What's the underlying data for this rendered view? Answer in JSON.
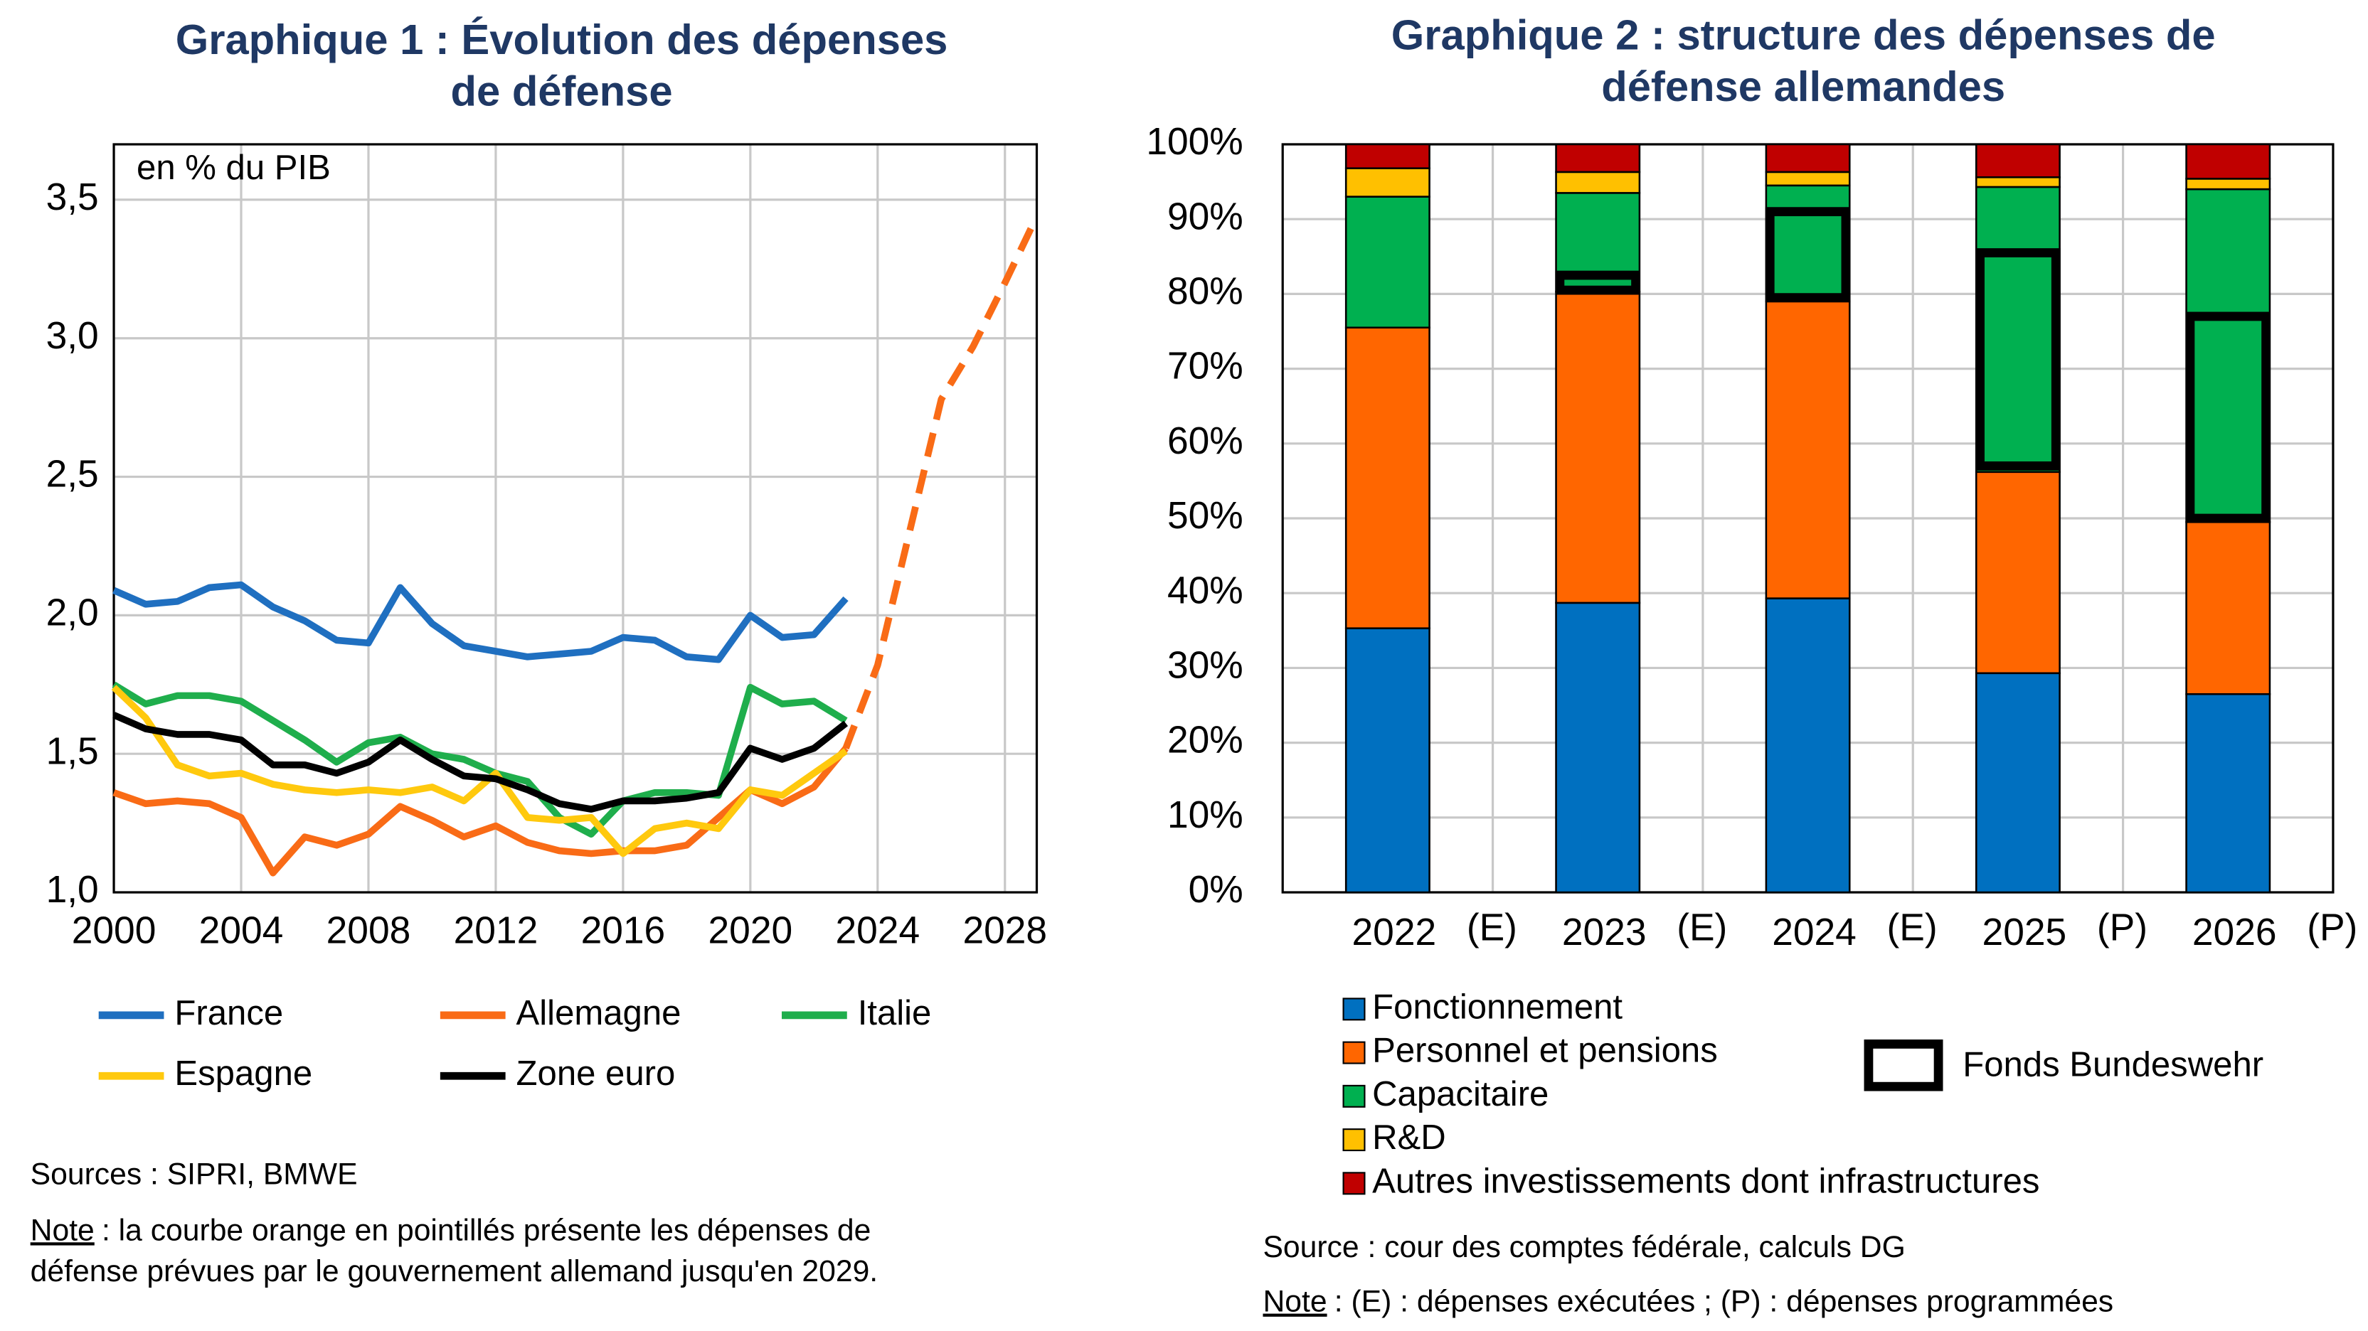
{
  "chart_data": [
    {
      "type": "line",
      "title": [
        "Graphique 1 : Évolution des dépenses",
        "de défense"
      ],
      "annotation": "en % du PIB",
      "x": [
        2000,
        2001,
        2002,
        2003,
        2004,
        2005,
        2006,
        2007,
        2008,
        2009,
        2010,
        2011,
        2012,
        2013,
        2014,
        2015,
        2016,
        2017,
        2018,
        2019,
        2020,
        2021,
        2022,
        2023,
        2024,
        2025,
        2026,
        2027,
        2028,
        2029
      ],
      "xlim": [
        2000,
        2029
      ],
      "xticks": [
        2000,
        2004,
        2008,
        2012,
        2016,
        2020,
        2024,
        2028
      ],
      "ylim": [
        1.0,
        3.7
      ],
      "yticks": [
        {
          "value": 1.0,
          "label": "1,0"
        },
        {
          "value": 1.5,
          "label": "1,5"
        },
        {
          "value": 2.0,
          "label": "2,0"
        },
        {
          "value": 2.5,
          "label": "2,5"
        },
        {
          "value": 3.0,
          "label": "3,0"
        },
        {
          "value": 3.5,
          "label": "3,5"
        }
      ],
      "grid": true,
      "series": [
        {
          "name": "France",
          "color": "#1f6fc0",
          "values": [
            2.09,
            2.04,
            2.05,
            2.1,
            2.11,
            2.03,
            1.98,
            1.91,
            1.9,
            2.1,
            1.97,
            1.89,
            1.87,
            1.85,
            1.86,
            1.87,
            1.92,
            1.91,
            1.85,
            1.84,
            2.0,
            1.92,
            1.93,
            2.06,
            null,
            null,
            null,
            null,
            null,
            null
          ]
        },
        {
          "name": "Allemagne",
          "color": "#f96b16",
          "values": [
            1.36,
            1.32,
            1.33,
            1.32,
            1.27,
            1.07,
            1.2,
            1.17,
            1.21,
            1.31,
            1.26,
            1.2,
            1.24,
            1.18,
            1.15,
            1.14,
            1.15,
            1.15,
            1.17,
            1.27,
            1.37,
            1.32,
            1.38,
            1.52,
            null,
            null,
            null,
            null,
            null,
            null
          ]
        },
        {
          "name": "Italie",
          "color": "#1fae4c",
          "values": [
            1.75,
            1.68,
            1.71,
            1.71,
            1.69,
            1.62,
            1.55,
            1.47,
            1.54,
            1.56,
            1.5,
            1.48,
            1.43,
            1.4,
            1.27,
            1.21,
            1.33,
            1.36,
            1.36,
            1.35,
            1.74,
            1.68,
            1.69,
            1.62,
            null,
            null,
            null,
            null,
            null,
            null
          ]
        },
        {
          "name": "Espagne",
          "color": "#ffc90e",
          "values": [
            1.74,
            1.63,
            1.46,
            1.42,
            1.43,
            1.39,
            1.37,
            1.36,
            1.37,
            1.36,
            1.38,
            1.33,
            1.43,
            1.27,
            1.26,
            1.27,
            1.14,
            1.23,
            1.25,
            1.23,
            1.37,
            1.35,
            1.43,
            1.51,
            null,
            null,
            null,
            null,
            null,
            null
          ]
        },
        {
          "name": "Zone euro",
          "color": "#000000",
          "values": [
            1.64,
            1.59,
            1.57,
            1.57,
            1.55,
            1.46,
            1.46,
            1.43,
            1.47,
            1.55,
            1.48,
            1.42,
            1.41,
            1.37,
            1.32,
            1.3,
            1.33,
            1.33,
            1.34,
            1.36,
            1.52,
            1.48,
            1.52,
            1.61,
            null,
            null,
            null,
            null,
            null,
            null
          ]
        },
        {
          "name": "Allemagne",
          "color": "#f96b16",
          "dashed": true,
          "legend": false,
          "values": [
            null,
            null,
            null,
            null,
            null,
            null,
            null,
            null,
            null,
            null,
            null,
            null,
            null,
            null,
            null,
            null,
            null,
            null,
            null,
            null,
            null,
            null,
            null,
            1.52,
            1.82,
            2.3,
            2.78,
            2.97,
            3.2,
            3.44
          ]
        }
      ],
      "sources": "Sources : SIPRI, BMWE",
      "note_label": "Note",
      "note_text": [
        " : la courbe orange en pointillés présente les dépenses de",
        "défense prévues par le gouvernement allemand jusqu'en 2029."
      ]
    },
    {
      "type": "stacked_bar",
      "title": [
        "Graphique 2 : structure des dépenses de",
        "défense allemandes"
      ],
      "categories": [
        "2022",
        "2023",
        "2024",
        "2025",
        "2026"
      ],
      "category_notes": [
        "(E)",
        "(E)",
        "(E)",
        "(P)",
        "(P)"
      ],
      "ylim": [
        0,
        100
      ],
      "yticks": [
        {
          "value": 0,
          "label": "0%"
        },
        {
          "value": 10,
          "label": "10%"
        },
        {
          "value": 20,
          "label": "20%"
        },
        {
          "value": 30,
          "label": "30%"
        },
        {
          "value": 40,
          "label": "40%"
        },
        {
          "value": 50,
          "label": "50%"
        },
        {
          "value": 60,
          "label": "60%"
        },
        {
          "value": 70,
          "label": "70%"
        },
        {
          "value": 80,
          "label": "80%"
        },
        {
          "value": 90,
          "label": "90%"
        },
        {
          "value": 100,
          "label": "100%"
        }
      ],
      "series": [
        {
          "name": "Fonctionnement",
          "color": "#0070c0",
          "values": [
            35.3,
            38.7,
            39.3,
            29.3,
            26.5
          ]
        },
        {
          "name": "Personnel et pensions",
          "color": "#ff6600",
          "values": [
            40.2,
            41.6,
            39.7,
            26.9,
            23.0
          ]
        },
        {
          "name": "Capacitaire",
          "color": "#00b050",
          "values": [
            17.5,
            13.2,
            15.5,
            38.1,
            44.5
          ]
        },
        {
          "name": "R&D",
          "color": "#ffc000",
          "values": [
            3.8,
            2.8,
            1.8,
            1.3,
            1.4
          ]
        },
        {
          "name": "Autres investissements dont infrastructures",
          "color": "#c00000",
          "values": [
            3.2,
            3.7,
            3.7,
            4.4,
            4.6
          ]
        }
      ],
      "overlay": {
        "name": "Fonds Bundeswehr",
        "base": [
          null,
          80.5,
          79.5,
          57,
          50
        ],
        "values": [
          null,
          2,
          11.5,
          28.5,
          27
        ]
      },
      "sources": "Source : cour des comptes fédérale, calculs DG",
      "note_label": "Note",
      "note_text": " : (E) : dépenses exécutées ; (P) : dépenses programmées"
    }
  ]
}
